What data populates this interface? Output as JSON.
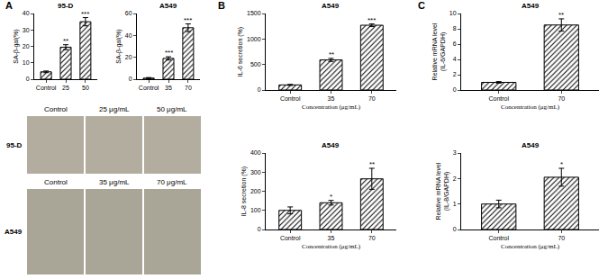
{
  "chart_data": [
    {
      "type": "bar",
      "title": "95-D",
      "y_label": "SA-β-gal(%)",
      "categories": [
        "Control",
        "25",
        "50"
      ],
      "values": [
        4.5,
        19.5,
        35
      ],
      "errors": [
        0.5,
        1.5,
        2.5
      ],
      "annotations": [
        null,
        "**",
        "***"
      ],
      "ylim": [
        0,
        40
      ],
      "yticks": [
        0,
        10,
        20,
        30,
        40
      ],
      "color": "#000000",
      "grid": false
    },
    {
      "type": "bar",
      "title": "A549",
      "y_label": "SA-β-gal(%)",
      "categories": [
        "Control",
        "35",
        "70"
      ],
      "values": [
        1,
        19,
        47
      ],
      "errors": [
        0.5,
        1.5,
        3.5
      ],
      "annotations": [
        null,
        "***",
        "***"
      ],
      "ylim": [
        0,
        60
      ],
      "yticks": [
        0,
        20,
        40,
        60
      ],
      "color": "#000000",
      "grid": false
    },
    {
      "type": "bar",
      "title": "A549",
      "y_label": "IL-6 secretion (%)",
      "x_label": "Concentration (μg/mL)",
      "categories": [
        "Control",
        "35",
        "70"
      ],
      "values": [
        100,
        590,
        1270
      ],
      "errors": [
        10,
        30,
        25
      ],
      "annotations": [
        null,
        "**",
        "***"
      ],
      "ylim": [
        0,
        1500
      ],
      "yticks": [
        0,
        500,
        1000,
        1500
      ],
      "color": "#000000",
      "grid": false
    },
    {
      "type": "bar",
      "title": "A549",
      "y_label": "IL-8 secretion (%)",
      "x_label": "Concentration (μg/mL)",
      "categories": [
        "Control",
        "35",
        "70"
      ],
      "values": [
        100,
        140,
        265
      ],
      "errors": [
        18,
        12,
        55
      ],
      "annotations": [
        null,
        "*",
        "**"
      ],
      "ylim": [
        0,
        400
      ],
      "yticks": [
        0,
        100,
        200,
        300,
        400
      ],
      "color": "#000000",
      "grid": false
    },
    {
      "type": "bar",
      "title": "A549",
      "y_label": "Relative mRNA level\n(IL-6/GAPDH)",
      "x_label": "Concentration (μg/mL)",
      "categories": [
        "Control",
        "70"
      ],
      "values": [
        1,
        8.5
      ],
      "errors": [
        0.1,
        0.8
      ],
      "annotations": [
        null,
        "**"
      ],
      "ylim": [
        0,
        10
      ],
      "yticks": [
        0,
        2,
        4,
        6,
        8,
        10
      ],
      "color": "#000000",
      "grid": false
    },
    {
      "type": "bar",
      "title": "A549",
      "y_label": "Relative mRNA level\n(IL-8/GAPDH)",
      "x_label": "Concentration (μg/mL)",
      "categories": [
        "Control",
        "70"
      ],
      "values": [
        1,
        2.05
      ],
      "errors": [
        0.15,
        0.35
      ],
      "annotations": [
        null,
        "*"
      ],
      "ylim": [
        0,
        3
      ],
      "yticks": [
        0,
        1,
        2,
        3
      ],
      "color": "#000000",
      "grid": false
    }
  ],
  "panel_labels": [
    "A",
    "B",
    "C"
  ],
  "micrographs": {
    "rows": [
      {
        "label": "95-D",
        "columns": [
          "Control",
          "25 μg/mL",
          "50 μg/mL"
        ]
      },
      {
        "label": "A549",
        "columns": [
          "Control",
          "35 μg/mL",
          "70 μg/mL"
        ]
      }
    ]
  }
}
